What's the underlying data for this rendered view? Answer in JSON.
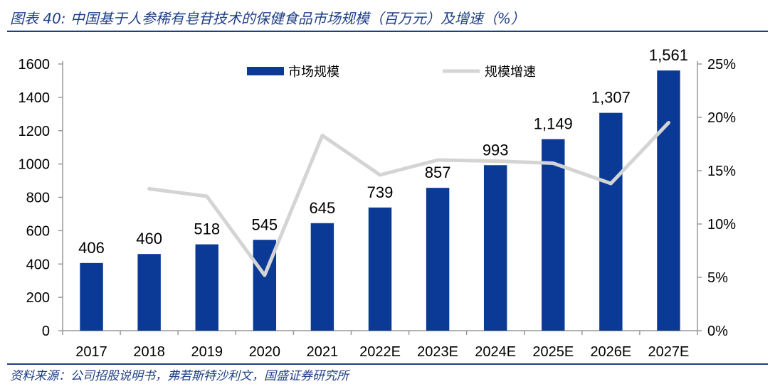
{
  "header": {
    "title": "图表 40:  中国基于人参稀有皂苷技术的保健食品市场规模（百万元）及增速（%）"
  },
  "footer": {
    "source": "资料来源：公司招股说明书，弗若斯特沙利文，国盛证券研究所"
  },
  "colors": {
    "bar": "#0b3a96",
    "line": "#d4d4d4",
    "frame": "#1f3f86",
    "axis": "#999999"
  },
  "chart_data": {
    "type": "bar",
    "categories": [
      "2017",
      "2018",
      "2019",
      "2020",
      "2021",
      "2022E",
      "2023E",
      "2024E",
      "2025E",
      "2026E",
      "2027E"
    ],
    "series": [
      {
        "name": "市场规模",
        "type": "bar",
        "axis": "left",
        "values": [
          406,
          460,
          518,
          545,
          645,
          739,
          857,
          993,
          1149,
          1307,
          1561
        ],
        "labels": [
          "406",
          "460",
          "518",
          "545",
          "645",
          "739",
          "857",
          "993",
          "1,149",
          "1,307",
          "1,561"
        ]
      },
      {
        "name": "规模增速",
        "type": "line",
        "axis": "right",
        "values": [
          null,
          13.3,
          12.6,
          5.2,
          18.3,
          14.6,
          16.0,
          15.9,
          15.7,
          13.8,
          19.5
        ]
      }
    ],
    "y_left": {
      "lim": [
        0,
        1600
      ],
      "ticks": [
        "0",
        "200",
        "400",
        "600",
        "800",
        "1000",
        "1200",
        "1400",
        "1600"
      ]
    },
    "y_right": {
      "lim": [
        0,
        25
      ],
      "ticks": [
        "0%",
        "5%",
        "10%",
        "15%",
        "20%",
        "25%"
      ]
    },
    "legend_position": "top",
    "grid": false
  }
}
